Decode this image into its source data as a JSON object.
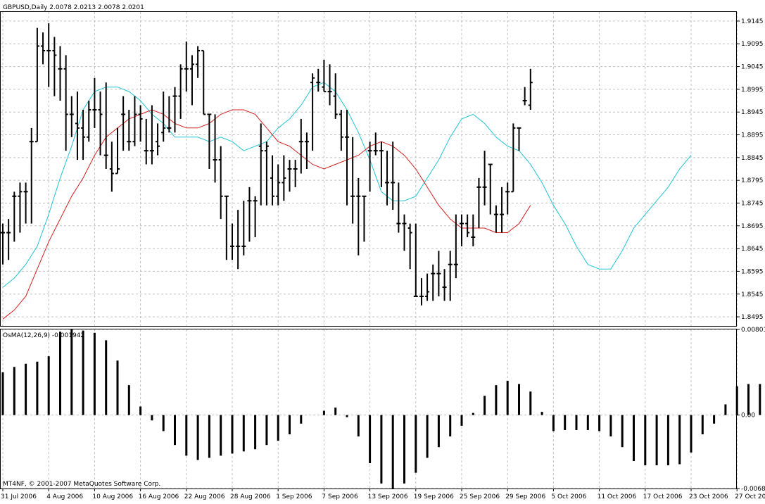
{
  "chart_data": {
    "type": "ohlc",
    "main": {
      "title": "GBPUSD,Daily  2.0078 2.0213 2.0078 2.0201",
      "ylim": [
        1.8475,
        1.9165
      ],
      "y_ticks": [
        "1.9145",
        "1.9095",
        "1.9045",
        "1.8995",
        "1.8945",
        "1.8895",
        "1.8845",
        "1.8795",
        "1.8745",
        "1.8695",
        "1.8645",
        "1.8595",
        "1.8545",
        "1.8495"
      ],
      "y_tick_values": [
        1.9145,
        1.9095,
        1.9045,
        1.8995,
        1.8945,
        1.8895,
        1.8845,
        1.8795,
        1.8745,
        1.8695,
        1.8645,
        1.8595,
        1.8545,
        1.8495
      ],
      "grid": true,
      "bars": [
        [
          1.868,
          1.87,
          1.861,
          1.868
        ],
        [
          1.868,
          1.871,
          1.862,
          1.868
        ],
        [
          1.876,
          1.877,
          1.866,
          1.876
        ],
        [
          1.876,
          1.879,
          1.868,
          1.877
        ],
        [
          1.877,
          1.879,
          1.87,
          1.877
        ],
        [
          1.888,
          1.891,
          1.87,
          1.888
        ],
        [
          1.888,
          1.913,
          1.888,
          1.909
        ],
        [
          1.909,
          1.912,
          1.905,
          1.908
        ],
        [
          1.908,
          1.914,
          1.9,
          1.908
        ],
        [
          1.908,
          1.911,
          1.898,
          1.907
        ],
        [
          1.904,
          1.909,
          1.897,
          1.904
        ],
        [
          1.904,
          1.907,
          1.886,
          1.894
        ],
        [
          1.894,
          1.898,
          1.889,
          1.894
        ],
        [
          1.892,
          1.899,
          1.884,
          1.891
        ],
        [
          1.891,
          1.895,
          1.884,
          1.889
        ],
        [
          1.889,
          1.897,
          1.888,
          1.895
        ],
        [
          1.895,
          1.902,
          1.891,
          1.895
        ],
        [
          1.895,
          1.899,
          1.885,
          1.894
        ],
        [
          1.885,
          1.901,
          1.882,
          1.885
        ],
        [
          1.882,
          1.888,
          1.877,
          1.881
        ],
        [
          1.881,
          1.891,
          1.881,
          1.882
        ],
        [
          1.894,
          1.898,
          1.886,
          1.894
        ],
        [
          1.888,
          1.895,
          1.886,
          1.888
        ],
        [
          1.888,
          1.898,
          1.887,
          1.894
        ],
        [
          1.894,
          1.896,
          1.888,
          1.893
        ],
        [
          1.886,
          1.893,
          1.883,
          1.886
        ],
        [
          1.886,
          1.896,
          1.883,
          1.886
        ],
        [
          1.888,
          1.892,
          1.885,
          1.887
        ],
        [
          1.89,
          1.899,
          1.888,
          1.891
        ],
        [
          1.891,
          1.898,
          1.89,
          1.891
        ],
        [
          1.898,
          1.9,
          1.89,
          1.898
        ],
        [
          1.898,
          1.905,
          1.893,
          1.904
        ],
        [
          1.904,
          1.91,
          1.899,
          1.904
        ],
        [
          1.904,
          1.907,
          1.896,
          1.905
        ],
        [
          1.905,
          1.909,
          1.902,
          1.908
        ],
        [
          1.908,
          1.908,
          1.894,
          1.894
        ],
        [
          1.894,
          1.894,
          1.882,
          1.894
        ],
        [
          1.884,
          1.894,
          1.879,
          1.884
        ],
        [
          1.884,
          1.887,
          1.871,
          1.876
        ],
        [
          1.876,
          1.876,
          1.862,
          1.876
        ],
        [
          1.865,
          1.87,
          1.862,
          1.865
        ],
        [
          1.865,
          1.873,
          1.86,
          1.865
        ],
        [
          1.865,
          1.875,
          1.863,
          1.865
        ],
        [
          1.875,
          1.878,
          1.866,
          1.875
        ],
        [
          1.875,
          1.876,
          1.867,
          1.875
        ],
        [
          1.887,
          1.892,
          1.874,
          1.886
        ],
        [
          1.886,
          1.888,
          1.874,
          1.887
        ],
        [
          1.88,
          1.885,
          1.874,
          1.876
        ],
        [
          1.876,
          1.883,
          1.874,
          1.879
        ],
        [
          1.879,
          1.885,
          1.875,
          1.88
        ],
        [
          1.882,
          1.884,
          1.877,
          1.882
        ],
        [
          1.882,
          1.884,
          1.878,
          1.882
        ],
        [
          1.888,
          1.893,
          1.881,
          1.888
        ],
        [
          1.888,
          1.89,
          1.882,
          1.888
        ],
        [
          1.901,
          1.903,
          1.886,
          1.902
        ],
        [
          1.901,
          1.904,
          1.899,
          1.901
        ],
        [
          1.9,
          1.906,
          1.899,
          1.899
        ],
        [
          1.899,
          1.905,
          1.896,
          1.899
        ],
        [
          1.898,
          1.903,
          1.893,
          1.894
        ],
        [
          1.894,
          1.895,
          1.886,
          1.889
        ],
        [
          1.889,
          1.895,
          1.874,
          1.889
        ],
        [
          1.876,
          1.889,
          1.87,
          1.876
        ],
        [
          1.876,
          1.88,
          1.863,
          1.876
        ],
        [
          1.876,
          1.876,
          1.866,
          1.876
        ],
        [
          1.886,
          1.888,
          1.877,
          1.886
        ],
        [
          1.886,
          1.89,
          1.885,
          1.886
        ],
        [
          1.886,
          1.888,
          1.878,
          1.886
        ],
        [
          1.879,
          1.886,
          1.874,
          1.879
        ],
        [
          1.879,
          1.888,
          1.873,
          1.879
        ],
        [
          1.87,
          1.879,
          1.868,
          1.87
        ],
        [
          1.87,
          1.872,
          1.864,
          1.87
        ],
        [
          1.869,
          1.87,
          1.86,
          1.868
        ],
        [
          1.854,
          1.87,
          1.854,
          1.854
        ],
        [
          1.854,
          1.858,
          1.852,
          1.854
        ],
        [
          1.854,
          1.859,
          1.853,
          1.855
        ],
        [
          1.859,
          1.861,
          1.853,
          1.859
        ],
        [
          1.859,
          1.864,
          1.854,
          1.859
        ],
        [
          1.856,
          1.86,
          1.853,
          1.856
        ],
        [
          1.861,
          1.864,
          1.853,
          1.861
        ],
        [
          1.861,
          1.872,
          1.858,
          1.861
        ],
        [
          1.87,
          1.872,
          1.865,
          1.87
        ],
        [
          1.87,
          1.872,
          1.867,
          1.868
        ],
        [
          1.867,
          1.872,
          1.865,
          1.867
        ],
        [
          1.878,
          1.88,
          1.869,
          1.878
        ],
        [
          1.878,
          1.886,
          1.874,
          1.878
        ],
        [
          1.883,
          1.883,
          1.872,
          1.883
        ],
        [
          1.872,
          1.874,
          1.868,
          1.872
        ],
        [
          1.872,
          1.878,
          1.868,
          1.872
        ],
        [
          1.877,
          1.879,
          1.872,
          1.877
        ],
        [
          1.877,
          1.892,
          1.877,
          1.891
        ],
        [
          1.891,
          1.891,
          1.886,
          1.891
        ],
        [
          1.897,
          1.9,
          1.896,
          1.897
        ],
        [
          1.896,
          1.904,
          1.895,
          1.901
        ]
      ],
      "ma_fast": [
        1.856,
        1.858,
        1.861,
        1.865,
        1.872,
        1.88,
        1.887,
        1.895,
        1.899,
        1.9,
        1.9,
        1.899,
        1.897,
        1.894,
        1.892,
        1.889,
        1.889,
        1.889,
        1.888,
        1.889,
        1.888,
        1.886,
        1.887,
        1.888,
        1.891,
        1.893,
        1.896,
        1.9,
        1.901,
        1.899,
        1.895,
        1.89,
        1.884,
        1.877,
        1.875,
        1.875,
        1.876,
        1.88,
        1.884,
        1.889,
        1.893,
        1.894,
        1.892,
        1.889,
        1.887,
        1.886,
        1.883,
        1.879,
        1.874,
        1.87,
        1.865,
        1.861,
        1.86,
        1.86,
        1.864,
        1.869,
        1.872,
        1.875,
        1.878,
        1.882,
        1.885
      ],
      "ma_fast_x": [
        0,
        2,
        4,
        6,
        8,
        10,
        12,
        14,
        16,
        18,
        20,
        22,
        24,
        26,
        28,
        30,
        32,
        34,
        36,
        38,
        40,
        42,
        44,
        46,
        48,
        50,
        52,
        54,
        56,
        58,
        60,
        62,
        64,
        66,
        68,
        70,
        72,
        74,
        76,
        78,
        80,
        82,
        84,
        86,
        88,
        90,
        92,
        94,
        96,
        98,
        100,
        102,
        104,
        106,
        108,
        110,
        112,
        114,
        116,
        118,
        120
      ],
      "ma_slow": [
        1.849,
        1.851,
        1.854,
        1.86,
        1.866,
        1.871,
        1.876,
        1.88,
        1.885,
        1.889,
        1.891,
        1.893,
        1.894,
        1.895,
        1.894,
        1.892,
        1.891,
        1.891,
        1.892,
        1.894,
        1.895,
        1.895,
        1.894,
        1.891,
        1.888,
        1.887,
        1.885,
        1.883,
        1.882,
        1.883,
        1.884,
        1.885,
        1.887,
        1.888,
        1.887,
        1.885,
        1.882,
        1.878,
        1.874,
        1.871,
        1.869,
        1.869,
        1.869,
        1.868,
        1.868,
        1.87,
        1.874
      ],
      "ma_slow_x": [
        0,
        2,
        4,
        6,
        8,
        10,
        12,
        14,
        16,
        18,
        20,
        22,
        24,
        26,
        28,
        30,
        32,
        34,
        36,
        38,
        40,
        42,
        44,
        46,
        48,
        50,
        52,
        54,
        56,
        58,
        60,
        62,
        64,
        66,
        68,
        70,
        72,
        74,
        76,
        78,
        80,
        82,
        84,
        86,
        88,
        90,
        92
      ]
    },
    "sub": {
      "title": "OsMA(12,26,9) -0.001942",
      "ylim": [
        -0.00687,
        0.00801
      ],
      "y_ticks": [
        "0.00801",
        "0.00",
        "-0.00687"
      ],
      "y_tick_values": [
        0.00801,
        0.0,
        -0.00687
      ],
      "values": [
        0.004,
        0.0045,
        0.0048,
        0.005,
        0.0055,
        0.0078,
        0.00801,
        0.0079,
        0.0077,
        0.007,
        0.0051,
        0.0028,
        0.0008,
        -0.0005,
        -0.0015,
        -0.0028,
        -0.0038,
        -0.0042,
        -0.004,
        -0.0038,
        -0.0036,
        -0.0034,
        -0.0032,
        -0.0028,
        -0.0024,
        -0.0018,
        -0.0008,
        0.0,
        0.0004,
        0.0007,
        -0.0002,
        -0.002,
        -0.0045,
        -0.0064,
        -0.00687,
        -0.0064,
        -0.0054,
        -0.004,
        -0.003,
        -0.002,
        -0.001,
        0.0002,
        0.0018,
        0.0028,
        0.0032,
        0.0029,
        0.0022,
        0.0003,
        -0.0015,
        -0.0014,
        -0.0014,
        -0.0014,
        -0.0015,
        -0.002,
        -0.003,
        -0.0043,
        -0.0047,
        -0.0047,
        -0.0047,
        -0.0046,
        -0.0035,
        -0.0018,
        -0.0008,
        0.001,
        0.0027,
        0.0029,
        0.0029,
        0.003,
        0.0038,
        0.0046,
        0.0055
      ]
    },
    "x_labels": [
      "31 Jul 2006",
      "4 Aug 2006",
      "10 Aug 2006",
      "16 Aug 2006",
      "22 Aug 2006",
      "28 Aug 2006",
      "1 Sep 2006",
      "7 Sep 2006",
      "13 Sep 2006",
      "19 Sep 2006",
      "25 Sep 2006",
      "29 Sep 2006",
      "5 Oct 2006",
      "11 Oct 2006",
      "17 Oct 2006",
      "23 Oct 2006",
      "27 Oct 2006"
    ],
    "x_label_index": [
      0,
      8,
      16,
      24,
      32,
      40,
      48,
      56,
      64,
      72,
      80,
      88,
      96,
      104,
      112,
      120,
      128
    ],
    "footer": "MT4NF, © 2001-2007 MetaQuotes Software Corp.",
    "colors": {
      "bars": "#000000",
      "ma_fast": "#22c4d4",
      "ma_slow": "#d42020",
      "grid": "#c0c0c0",
      "background": "#ffffff"
    }
  }
}
